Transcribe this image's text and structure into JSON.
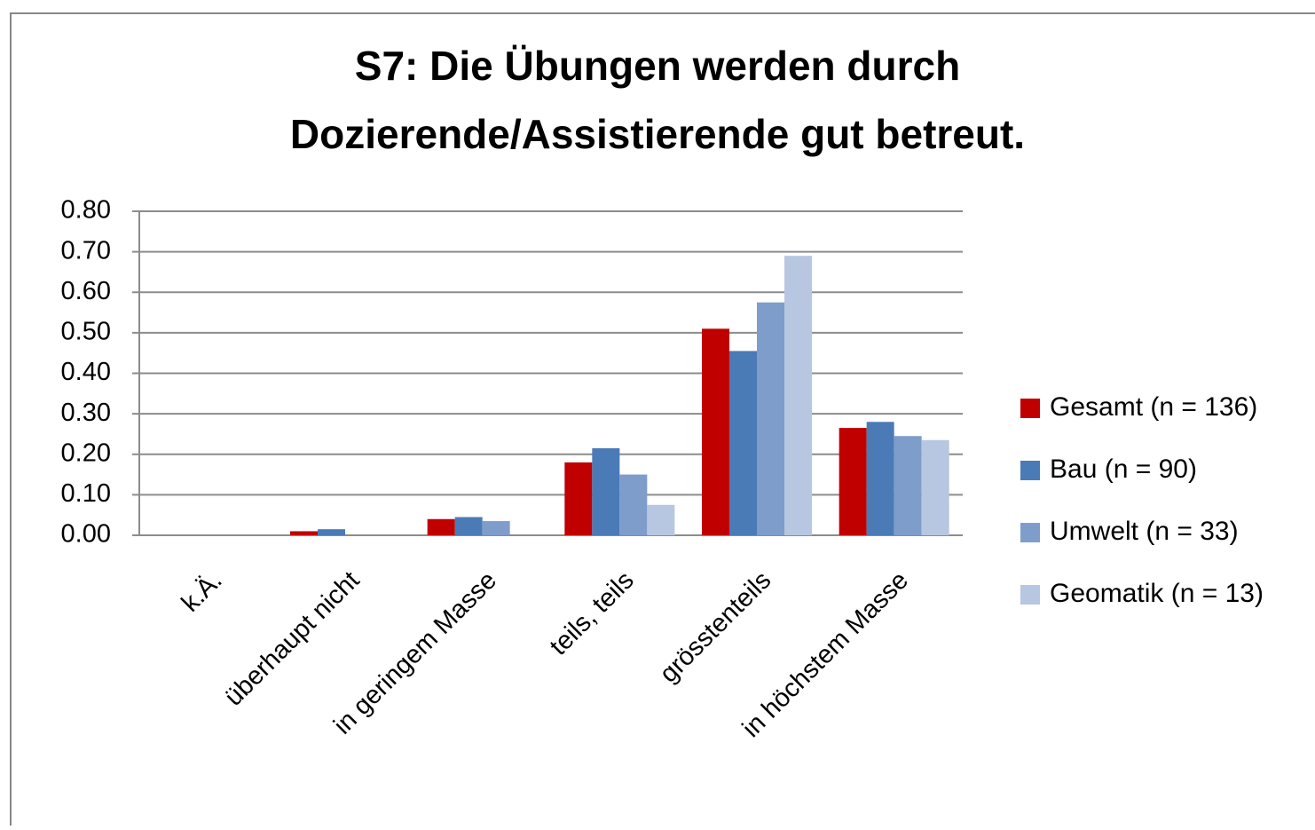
{
  "chart_data": {
    "type": "bar",
    "title": [
      "S7: Die Übungen werden durch",
      "Dozierende/Assistierende gut betreut."
    ],
    "categories": [
      "k.Ä.",
      "überhaupt nicht",
      "in geringem Masse",
      "teils, teils",
      "grösstenteils",
      "in höchstem Masse"
    ],
    "series": [
      {
        "name": "Gesamt (n = 136)",
        "color": "#c00000",
        "values": [
          0,
          0.01,
          0.04,
          0.18,
          0.51,
          0.265
        ]
      },
      {
        "name": "Bau (n = 90)",
        "color": "#4a7bb7",
        "values": [
          0,
          0.015,
          0.045,
          0.215,
          0.455,
          0.28
        ]
      },
      {
        "name": "Umwelt (n = 33)",
        "color": "#7f9dcb",
        "values": [
          0,
          0,
          0.035,
          0.15,
          0.575,
          0.245
        ]
      },
      {
        "name": "Geomatik (n = 13)",
        "color": "#b7c7e1",
        "values": [
          0,
          0,
          0,
          0.075,
          0.69,
          0.235
        ]
      }
    ],
    "ylim": [
      0,
      0.8
    ],
    "yticks": [
      {
        "value": 0,
        "label": "0.00"
      },
      {
        "value": 0.1,
        "label": "0.10"
      },
      {
        "value": 0.2,
        "label": "0.20"
      },
      {
        "value": 0.3,
        "label": "0.30"
      },
      {
        "value": 0.4,
        "label": "0.40"
      },
      {
        "value": 0.5,
        "label": "0.50"
      },
      {
        "value": 0.6,
        "label": "0.60"
      },
      {
        "value": 0.7,
        "label": "0.70"
      },
      {
        "value": 0.8,
        "label": "0.80"
      }
    ],
    "grid": true,
    "legend": "right"
  }
}
